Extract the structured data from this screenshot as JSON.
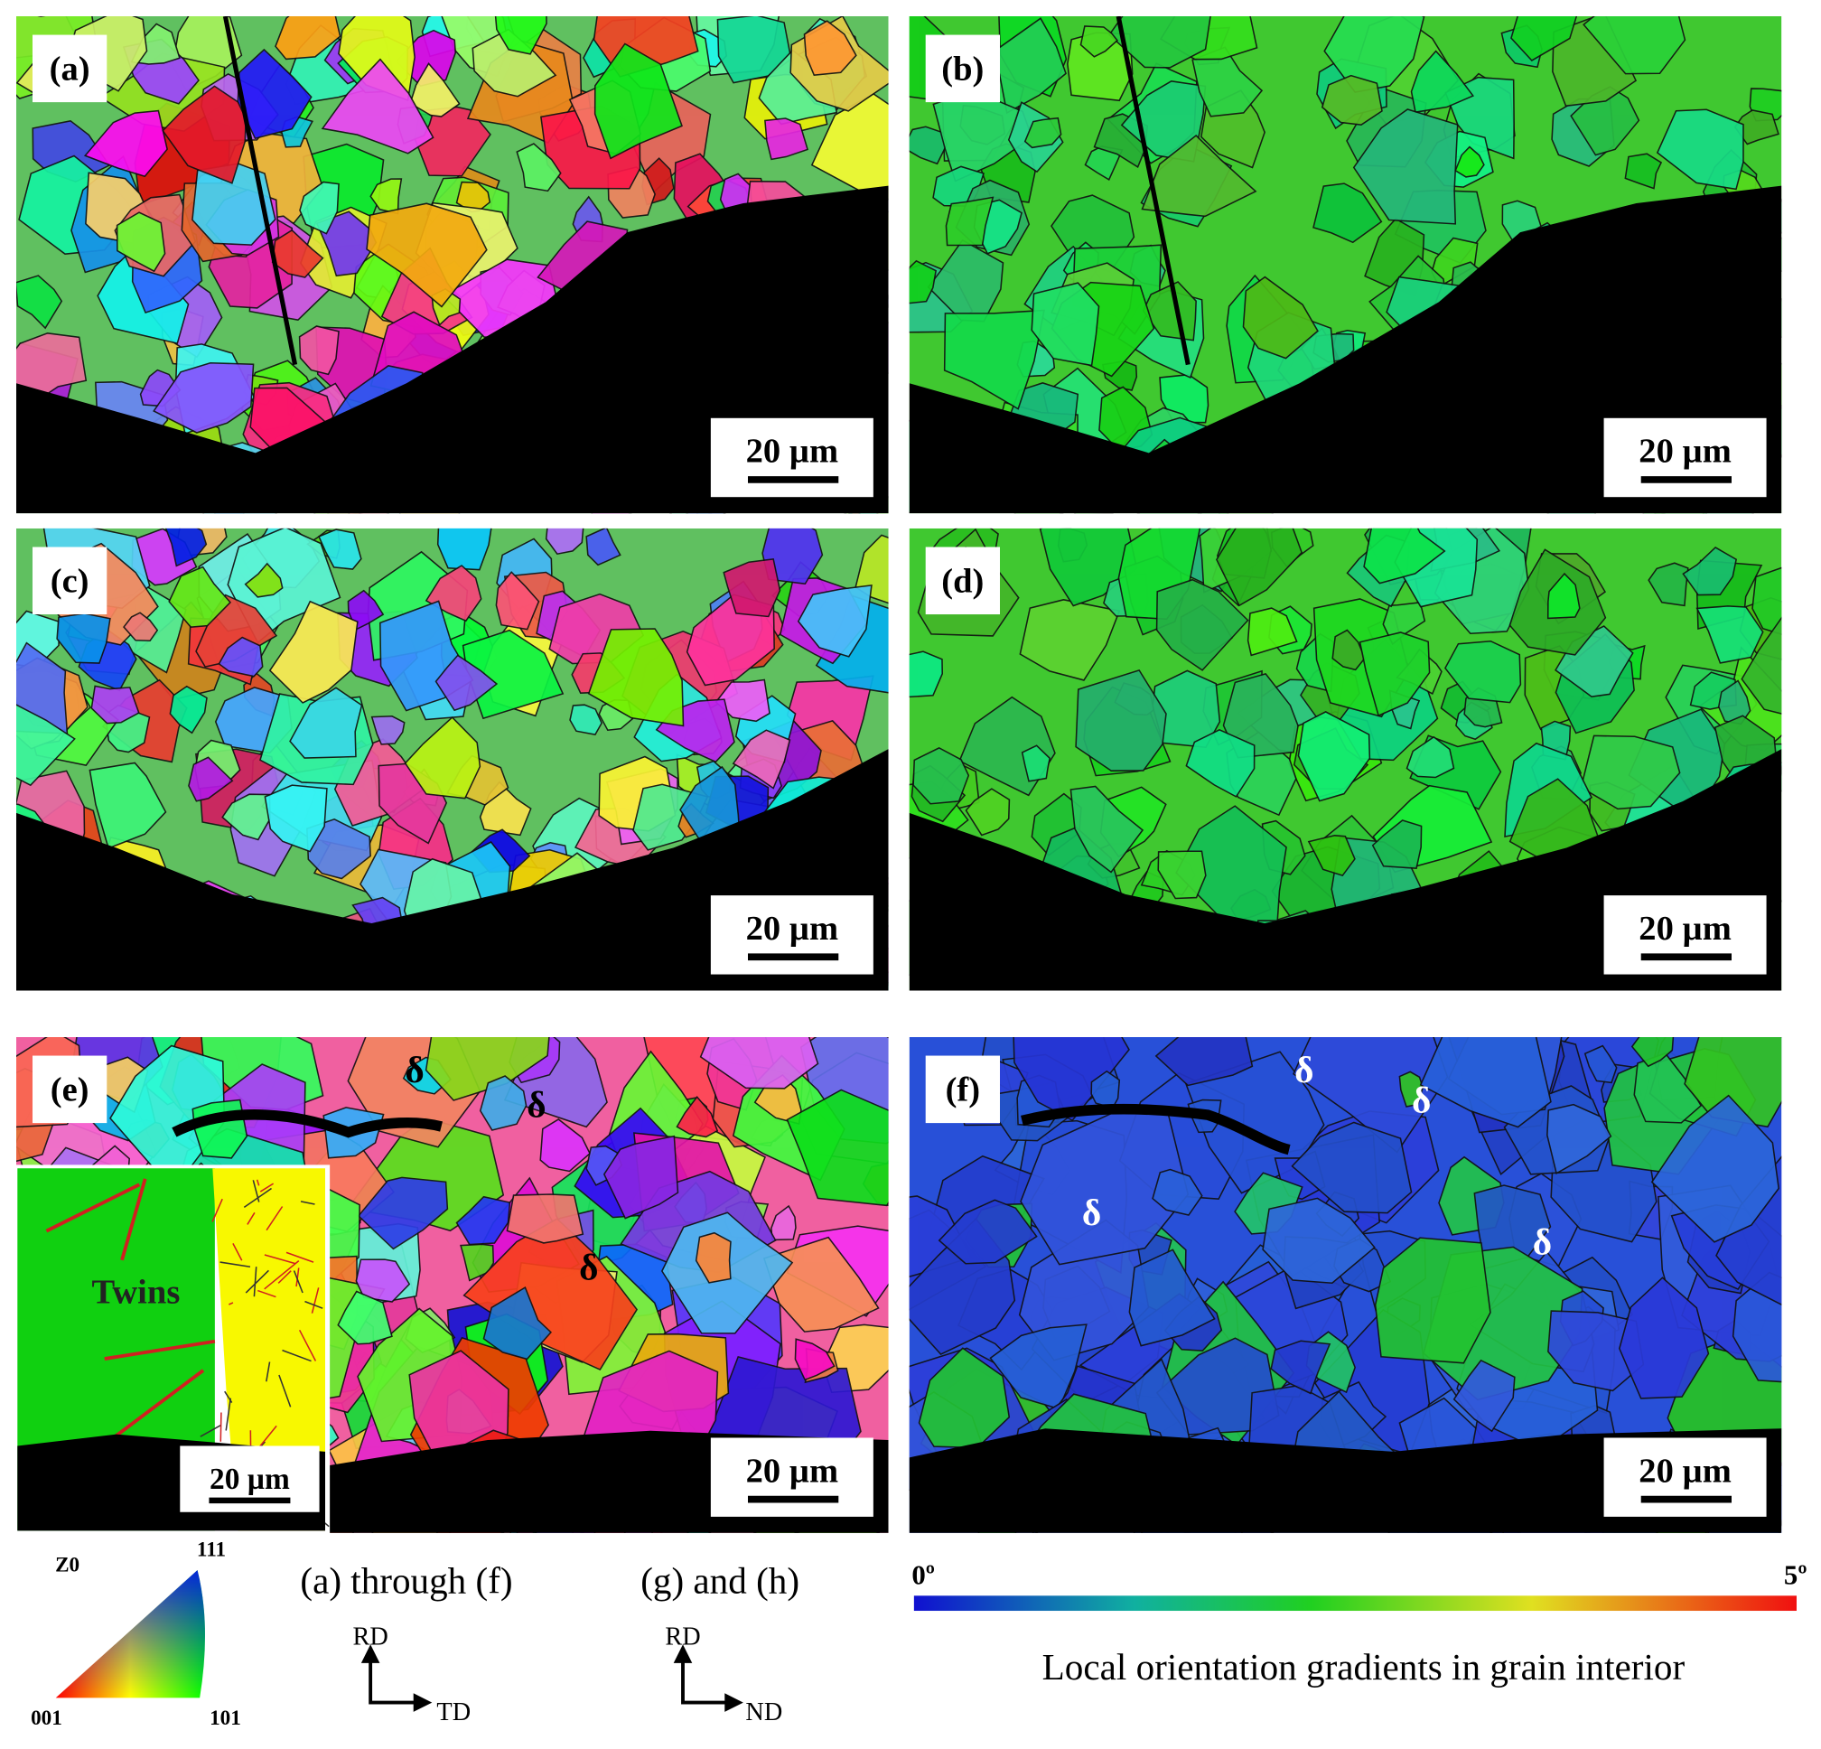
{
  "panels": [
    {
      "label": "(a)",
      "scale_bar": "20 µm",
      "annotations": []
    },
    {
      "label": "(b)",
      "scale_bar": "20 µm",
      "annotations": []
    },
    {
      "label": "(c)",
      "scale_bar": "20 µm",
      "annotations": []
    },
    {
      "label": "(d)",
      "scale_bar": "20 µm",
      "annotations": []
    },
    {
      "label": "(e)",
      "scale_bar": "20 µm",
      "annotations": [
        "δ",
        "δ",
        "δ"
      ],
      "inset": {
        "label": "Twins",
        "scale_bar": "20 µm"
      }
    },
    {
      "label": "(f)",
      "scale_bar": "20 µm",
      "annotations": [
        "δ",
        "δ",
        "δ",
        "δ"
      ]
    }
  ],
  "ipf_legend": {
    "title": "Z0",
    "top": "111",
    "left": "001",
    "right": "101"
  },
  "axes": [
    {
      "caption": "(a) through (f)",
      "up": "RD",
      "right": "TD"
    },
    {
      "caption": "(g) and (h)",
      "up": "RD",
      "right": "ND"
    }
  ],
  "colorbar": {
    "min": "0º",
    "max": "5º",
    "caption": "Local orientation gradients in grain interior"
  }
}
